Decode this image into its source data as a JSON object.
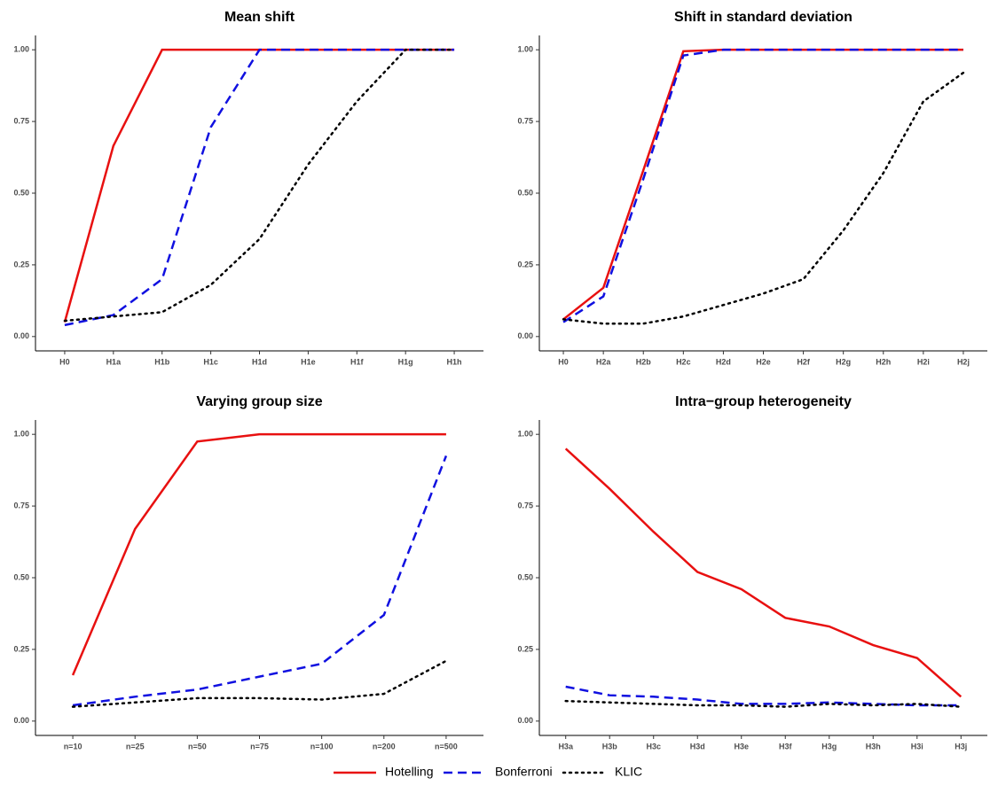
{
  "chart_data": [
    {
      "type": "line",
      "title": "Mean shift",
      "categories": [
        "H0",
        "H1a",
        "H1b",
        "H1c",
        "H1d",
        "H1e",
        "H1f",
        "H1g",
        "H1h"
      ],
      "series": [
        {
          "name": "Hotelling",
          "color": "#e81010",
          "dash": "solid",
          "values": [
            0.05,
            0.665,
            1.0,
            1.0,
            1.0,
            1.0,
            1.0,
            1.0,
            1.0
          ]
        },
        {
          "name": "Bonferroni",
          "color": "#1010e0",
          "dash": "dashed",
          "values": [
            0.04,
            0.075,
            0.2,
            0.73,
            1.0,
            1.0,
            1.0,
            1.0,
            1.0
          ]
        },
        {
          "name": "KLIC",
          "color": "#000000",
          "dash": "dotted",
          "values": [
            0.055,
            0.07,
            0.085,
            0.18,
            0.34,
            0.6,
            0.82,
            1.0,
            1.0
          ]
        }
      ],
      "ylim": [
        -0.05,
        1.05
      ],
      "yticks": [
        {
          "value": 0,
          "label": "0.00"
        },
        0.25,
        {
          "value": 0.5,
          "label": "0.50"
        },
        0.75,
        {
          "value": 1,
          "label": "1.00"
        }
      ]
    },
    {
      "type": "line",
      "title": "Shift in standard deviation",
      "categories": [
        "H0",
        "H2a",
        "H2b",
        "H2c",
        "H2d",
        "H2e",
        "H2f",
        "H2g",
        "H2h",
        "H2i",
        "H2j"
      ],
      "series": [
        {
          "name": "Hotelling",
          "color": "#e81010",
          "dash": "solid",
          "values": [
            0.06,
            0.17,
            0.58,
            0.995,
            1.0,
            1.0,
            1.0,
            1.0,
            1.0,
            1.0,
            1.0
          ]
        },
        {
          "name": "Bonferroni",
          "color": "#1010e0",
          "dash": "dashed",
          "values": [
            0.05,
            0.14,
            0.55,
            0.98,
            1.0,
            1.0,
            1.0,
            1.0,
            1.0,
            1.0,
            1.0
          ]
        },
        {
          "name": "KLIC",
          "color": "#000000",
          "dash": "dotted",
          "values": [
            0.06,
            0.045,
            0.045,
            0.07,
            0.11,
            0.15,
            0.2,
            0.37,
            0.57,
            0.82,
            0.92
          ]
        }
      ],
      "ylim": [
        -0.05,
        1.05
      ],
      "yticks": [
        {
          "value": 0,
          "label": "0.00"
        },
        0.25,
        {
          "value": 0.5,
          "label": "0.50"
        },
        0.75,
        {
          "value": 1,
          "label": "1.00"
        }
      ]
    },
    {
      "type": "line",
      "title": "Varying group size",
      "categories": [
        "n=10",
        "n=25",
        "n=50",
        "n=75",
        "n=100",
        "n=200",
        "n=500"
      ],
      "series": [
        {
          "name": "Hotelling",
          "color": "#e81010",
          "dash": "solid",
          "values": [
            0.16,
            0.67,
            0.975,
            1.0,
            1.0,
            1.0,
            1.0
          ]
        },
        {
          "name": "Bonferroni",
          "color": "#1010e0",
          "dash": "dashed",
          "values": [
            0.055,
            0.085,
            0.11,
            0.155,
            0.2,
            0.37,
            0.925
          ]
        },
        {
          "name": "KLIC",
          "color": "#000000",
          "dash": "dotted",
          "values": [
            0.05,
            0.065,
            0.08,
            0.08,
            0.075,
            0.095,
            0.21
          ]
        }
      ],
      "ylim": [
        -0.05,
        1.05
      ],
      "yticks": [
        {
          "value": 0,
          "label": "0.00"
        },
        0.25,
        {
          "value": 0.5,
          "label": "0.50"
        },
        0.75,
        {
          "value": 1,
          "label": "1.00"
        }
      ]
    },
    {
      "type": "line",
      "title": "Intra−group heterogeneity",
      "categories": [
        "H3a",
        "H3b",
        "H3c",
        "H3d",
        "H3e",
        "H3f",
        "H3g",
        "H3h",
        "H3i",
        "H3j"
      ],
      "series": [
        {
          "name": "Hotelling",
          "color": "#e81010",
          "dash": "solid",
          "values": [
            0.95,
            0.81,
            0.66,
            0.52,
            0.46,
            0.36,
            0.33,
            0.265,
            0.22,
            0.085
          ]
        },
        {
          "name": "Bonferroni",
          "color": "#1010e0",
          "dash": "dashed",
          "values": [
            0.12,
            0.09,
            0.085,
            0.075,
            0.06,
            0.06,
            0.065,
            0.06,
            0.055,
            0.055
          ]
        },
        {
          "name": "KLIC",
          "color": "#000000",
          "dash": "dotted",
          "values": [
            0.07,
            0.065,
            0.06,
            0.055,
            0.055,
            0.05,
            0.06,
            0.055,
            0.06,
            0.05
          ]
        }
      ],
      "ylim": [
        -0.05,
        1.05
      ],
      "yticks": [
        {
          "value": 0,
          "label": "0.00"
        },
        0.25,
        {
          "value": 0.5,
          "label": "0.50"
        },
        0.75,
        {
          "value": 1,
          "label": "1.00"
        }
      ]
    }
  ]
}
